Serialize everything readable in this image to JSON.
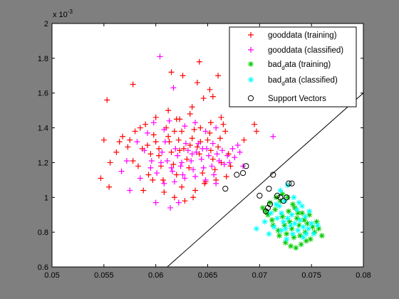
{
  "chart_data": {
    "type": "scatter",
    "xlim": [
      0.05,
      0.08
    ],
    "ylim": [
      0.0006,
      0.002
    ],
    "xticks": [
      "0.05",
      "0.055",
      "0.06",
      "0.065",
      "0.07",
      "0.075",
      "0.08"
    ],
    "yticks": [
      "0.6",
      "0.8",
      "1",
      "1.2",
      "1.4",
      "1.6",
      "1.8",
      "2"
    ],
    "y_exponent": {
      "base": "x 10",
      "power": "-3"
    },
    "grid": false,
    "legend_position": "top-right",
    "legend": [
      {
        "label": "gooddata (training)",
        "marker": "+",
        "color": "#ff0000"
      },
      {
        "label": "gooddata (classified)",
        "marker": "+",
        "color": "#ff00ff"
      },
      {
        "label_main": "bad",
        "label_sub": "d",
        "label_rest": "ata (training)",
        "marker": "*",
        "color": "#00cc00"
      },
      {
        "label_main": "bad",
        "label_sub": "d",
        "label_rest": "ata (classified)",
        "marker": "*",
        "color": "#00ffff"
      },
      {
        "label": "Support Vectors",
        "marker": "o",
        "color": "#000000"
      }
    ],
    "decision_boundary": [
      [
        0.0611,
        0.0006
      ],
      [
        0.08,
        0.0016
      ]
    ],
    "series": [
      {
        "name": "gooddata (training)",
        "marker": "+",
        "color": "#ff0000",
        "points": [
          [
            0.0553,
            0.00156
          ],
          [
            0.0578,
            0.00165
          ],
          [
            0.0615,
            0.00172
          ],
          [
            0.0626,
            0.0017
          ],
          [
            0.0642,
            0.00178
          ],
          [
            0.066,
            0.0017
          ],
          [
            0.0635,
            0.00152
          ],
          [
            0.0646,
            0.00157
          ],
          [
            0.0655,
            0.00158
          ],
          [
            0.0652,
            0.00162
          ],
          [
            0.064,
            0.00166
          ],
          [
            0.0623,
            0.00145
          ],
          [
            0.0547,
            0.00111
          ],
          [
            0.0555,
            0.00106
          ],
          [
            0.0562,
            0.00126
          ],
          [
            0.0565,
            0.00132
          ],
          [
            0.0568,
            0.00135
          ],
          [
            0.0575,
            0.00133
          ],
          [
            0.058,
            0.00138
          ],
          [
            0.0585,
            0.0014
          ],
          [
            0.059,
            0.00142
          ],
          [
            0.0592,
            0.0013
          ],
          [
            0.0595,
            0.00125
          ],
          [
            0.0598,
            0.00136
          ],
          [
            0.06,
            0.00132
          ],
          [
            0.0603,
            0.00128
          ],
          [
            0.0605,
            0.00118
          ],
          [
            0.0607,
            0.0011
          ],
          [
            0.061,
            0.0014
          ],
          [
            0.0612,
            0.00135
          ],
          [
            0.0615,
            0.00126
          ],
          [
            0.0617,
            0.00119
          ],
          [
            0.062,
            0.00113
          ],
          [
            0.0622,
            0.00133
          ],
          [
            0.0625,
            0.00138
          ],
          [
            0.0627,
            0.00128
          ],
          [
            0.063,
            0.00122
          ],
          [
            0.0632,
            0.00117
          ],
          [
            0.0635,
            0.00134
          ],
          [
            0.0637,
            0.00139
          ],
          [
            0.064,
            0.00129
          ],
          [
            0.0642,
            0.00125
          ],
          [
            0.0645,
            0.00114
          ],
          [
            0.0647,
            0.00108
          ],
          [
            0.065,
            0.00133
          ],
          [
            0.0652,
            0.00137
          ],
          [
            0.0655,
            0.00122
          ],
          [
            0.0657,
            0.00116
          ],
          [
            0.066,
            0.00129
          ],
          [
            0.0662,
            0.00134
          ],
          [
            0.0665,
            0.00142
          ],
          [
            0.0667,
            0.00138
          ],
          [
            0.067,
            0.00125
          ],
          [
            0.0672,
            0.00118
          ],
          [
            0.0583,
            0.00118
          ],
          [
            0.0588,
            0.00104
          ],
          [
            0.0597,
            0.0011
          ],
          [
            0.0608,
            0.00103
          ],
          [
            0.0618,
            0.001
          ],
          [
            0.0628,
            0.00098
          ],
          [
            0.0638,
            0.00104
          ],
          [
            0.0648,
            0.00109
          ],
          [
            0.0658,
            0.0011
          ],
          [
            0.0663,
            0.0012
          ],
          [
            0.06,
            0.00146
          ],
          [
            0.0612,
            0.0015
          ],
          [
            0.062,
            0.00145
          ],
          [
            0.0633,
            0.00148
          ],
          [
            0.0643,
            0.0014
          ],
          [
            0.0653,
            0.00143
          ],
          [
            0.0663,
            0.00146
          ],
          [
            0.0573,
            0.00129
          ],
          [
            0.0578,
            0.00121
          ],
          [
            0.0593,
            0.00113
          ],
          [
            0.0603,
            0.00124
          ],
          [
            0.0613,
            0.00132
          ],
          [
            0.0623,
            0.00127
          ],
          [
            0.0633,
            0.0013
          ],
          [
            0.0643,
            0.00132
          ],
          [
            0.0653,
            0.00127
          ],
          [
            0.0668,
            0.00112
          ],
          [
            0.0685,
            0.00133
          ],
          [
            0.0695,
            0.00142
          ],
          [
            0.0697,
            0.00138
          ],
          [
            0.055,
            0.00133
          ],
          [
            0.0556,
            0.0012
          ],
          [
            0.0587,
            0.00128
          ],
          [
            0.0625,
            0.00106
          ],
          [
            0.0636,
            0.001
          ],
          [
            0.0618,
            0.00138
          ]
        ]
      },
      {
        "name": "gooddata (classified)",
        "marker": "+",
        "color": "#ff00ff",
        "points": [
          [
            0.0604,
            0.00181
          ],
          [
            0.0617,
            0.00163
          ],
          [
            0.0575,
            0.00104
          ],
          [
            0.06,
            0.00097
          ],
          [
            0.0614,
            0.00094
          ],
          [
            0.0622,
            0.00097
          ],
          [
            0.0567,
            0.00115
          ],
          [
            0.0572,
            0.00121
          ],
          [
            0.0582,
            0.00132
          ],
          [
            0.0589,
            0.00127
          ],
          [
            0.0596,
            0.00121
          ],
          [
            0.0601,
            0.00114
          ],
          [
            0.0606,
            0.00126
          ],
          [
            0.0609,
            0.00132
          ],
          [
            0.0611,
            0.00121
          ],
          [
            0.0616,
            0.00115
          ],
          [
            0.0619,
            0.00128
          ],
          [
            0.0621,
            0.00124
          ],
          [
            0.0624,
            0.00118
          ],
          [
            0.0626,
            0.00113
          ],
          [
            0.0629,
            0.00131
          ],
          [
            0.0631,
            0.00127
          ],
          [
            0.0634,
            0.00121
          ],
          [
            0.0636,
            0.00116
          ],
          [
            0.0639,
            0.00126
          ],
          [
            0.0641,
            0.00131
          ],
          [
            0.0644,
            0.00122
          ],
          [
            0.0646,
            0.00117
          ],
          [
            0.0649,
            0.00128
          ],
          [
            0.0651,
            0.00124
          ],
          [
            0.0654,
            0.00118
          ],
          [
            0.0656,
            0.00113
          ],
          [
            0.0659,
            0.00125
          ],
          [
            0.0661,
            0.00121
          ],
          [
            0.0664,
            0.00127
          ],
          [
            0.0666,
            0.00119
          ],
          [
            0.0669,
            0.00124
          ],
          [
            0.0671,
            0.0012
          ],
          [
            0.0674,
            0.00128
          ],
          [
            0.0676,
            0.00123
          ],
          [
            0.0679,
            0.0013
          ],
          [
            0.0681,
            0.00126
          ],
          [
            0.0684,
            0.00118
          ],
          [
            0.0713,
            0.00135
          ],
          [
            0.0592,
            0.00137
          ],
          [
            0.0598,
            0.00143
          ],
          [
            0.0608,
            0.00139
          ],
          [
            0.0613,
            0.00144
          ],
          [
            0.0628,
            0.00141
          ],
          [
            0.0638,
            0.00143
          ],
          [
            0.0648,
            0.00138
          ],
          [
            0.0658,
            0.0014
          ],
          [
            0.0608,
            0.00108
          ],
          [
            0.0618,
            0.00109
          ],
          [
            0.0628,
            0.00111
          ],
          [
            0.0638,
            0.00112
          ],
          [
            0.0648,
            0.0011
          ],
          [
            0.0658,
            0.00108
          ],
          [
            0.0585,
            0.00111
          ],
          [
            0.0595,
            0.00117
          ],
          [
            0.0605,
            0.0012
          ],
          [
            0.0615,
            0.00117
          ],
          [
            0.0625,
            0.0012
          ],
          [
            0.0635,
            0.00125
          ],
          [
            0.0645,
            0.00128
          ],
          [
            0.0655,
            0.00131
          ]
        ]
      },
      {
        "name_main": "bad",
        "name_sub": "d",
        "name_rest": "ata (training)",
        "marker": "*",
        "color": "#00cc00",
        "points": [
          [
            0.0703,
            0.00094
          ],
          [
            0.0708,
            0.0009
          ],
          [
            0.0712,
            0.00087
          ],
          [
            0.0715,
            0.00093
          ],
          [
            0.0718,
            0.00081
          ],
          [
            0.072,
            0.00098
          ],
          [
            0.0722,
            0.00089
          ],
          [
            0.0724,
            0.00084
          ],
          [
            0.0726,
            0.00079
          ],
          [
            0.0728,
            0.00092
          ],
          [
            0.0729,
            0.00086
          ],
          [
            0.0731,
            0.00082
          ],
          [
            0.0733,
            0.00077
          ],
          [
            0.0734,
            0.00094
          ],
          [
            0.0736,
            0.00088
          ],
          [
            0.0738,
            0.00084
          ],
          [
            0.0739,
            0.00078
          ],
          [
            0.0741,
            0.00091
          ],
          [
            0.0743,
            0.00087
          ],
          [
            0.0744,
            0.0008
          ],
          [
            0.0746,
            0.00085
          ],
          [
            0.0748,
            0.0009
          ],
          [
            0.0749,
            0.00076
          ],
          [
            0.0751,
            0.00083
          ],
          [
            0.0753,
            0.0008
          ],
          [
            0.0755,
            0.00086
          ],
          [
            0.0757,
            0.00082
          ],
          [
            0.076,
            0.00078
          ],
          [
            0.0725,
            0.00074
          ],
          [
            0.073,
            0.00072
          ],
          [
            0.0735,
            0.00071
          ],
          [
            0.074,
            0.00073
          ],
          [
            0.0745,
            0.00075
          ],
          [
            0.0722,
            0.00102
          ],
          [
            0.0727,
            0.001
          ],
          [
            0.0732,
            0.00096
          ],
          [
            0.0716,
            0.001
          ],
          [
            0.071,
            0.00097
          ],
          [
            0.0706,
            0.00092
          ],
          [
            0.0713,
            0.00084
          ],
          [
            0.0719,
            0.00078
          ],
          [
            0.0737,
            0.00091
          ]
        ]
      },
      {
        "name_main": "bad",
        "name_sub": "d",
        "name_rest": "ata (classified)",
        "marker": "*",
        "color": "#00ffff",
        "points": [
          [
            0.0697,
            0.00082
          ],
          [
            0.0705,
            0.00086
          ],
          [
            0.0709,
            0.00079
          ],
          [
            0.0714,
            0.00083
          ],
          [
            0.0717,
            0.00088
          ],
          [
            0.0719,
            0.00095
          ],
          [
            0.0721,
            0.00091
          ],
          [
            0.0723,
            0.00086
          ],
          [
            0.0725,
            0.00082
          ],
          [
            0.0727,
            0.00088
          ],
          [
            0.073,
            0.00084
          ],
          [
            0.0732,
            0.00079
          ],
          [
            0.0734,
            0.00085
          ],
          [
            0.0737,
            0.00081
          ],
          [
            0.0739,
            0.00087
          ],
          [
            0.0742,
            0.00083
          ],
          [
            0.0745,
            0.00079
          ],
          [
            0.0747,
            0.00082
          ],
          [
            0.075,
            0.00085
          ],
          [
            0.0752,
            0.00079
          ],
          [
            0.0756,
            0.00084
          ],
          [
            0.0721,
            0.00081
          ],
          [
            0.0726,
            0.00076
          ],
          [
            0.0731,
            0.0009
          ],
          [
            0.0736,
            0.00093
          ],
          [
            0.0741,
            0.00095
          ],
          [
            0.0744,
            0.00089
          ],
          [
            0.0748,
            0.00092
          ],
          [
            0.0711,
            0.00091
          ],
          [
            0.0716,
            0.00096
          ],
          [
            0.072,
            0.00104
          ],
          [
            0.0724,
            0.00098
          ],
          [
            0.0733,
            0.001
          ],
          [
            0.0727,
            0.00107
          ],
          [
            0.0738,
            0.00097
          ],
          [
            0.0742,
            0.00077
          ]
        ]
      },
      {
        "name": "Support Vectors",
        "marker": "o",
        "color": "#000000",
        "points": [
          [
            0.0667,
            0.00105
          ],
          [
            0.0678,
            0.00113
          ],
          [
            0.0684,
            0.00114
          ],
          [
            0.0687,
            0.00118
          ],
          [
            0.07,
            0.00101
          ],
          [
            0.0713,
            0.00113
          ],
          [
            0.0706,
            0.00092
          ],
          [
            0.0708,
            0.00094
          ],
          [
            0.071,
            0.00096
          ],
          [
            0.0717,
            0.00101
          ],
          [
            0.072,
            0.001
          ],
          [
            0.0723,
            0.00098
          ],
          [
            0.0726,
            0.001
          ],
          [
            0.0728,
            0.00108
          ],
          [
            0.0731,
            0.00108
          ],
          [
            0.0709,
            0.00105
          ]
        ]
      }
    ]
  }
}
